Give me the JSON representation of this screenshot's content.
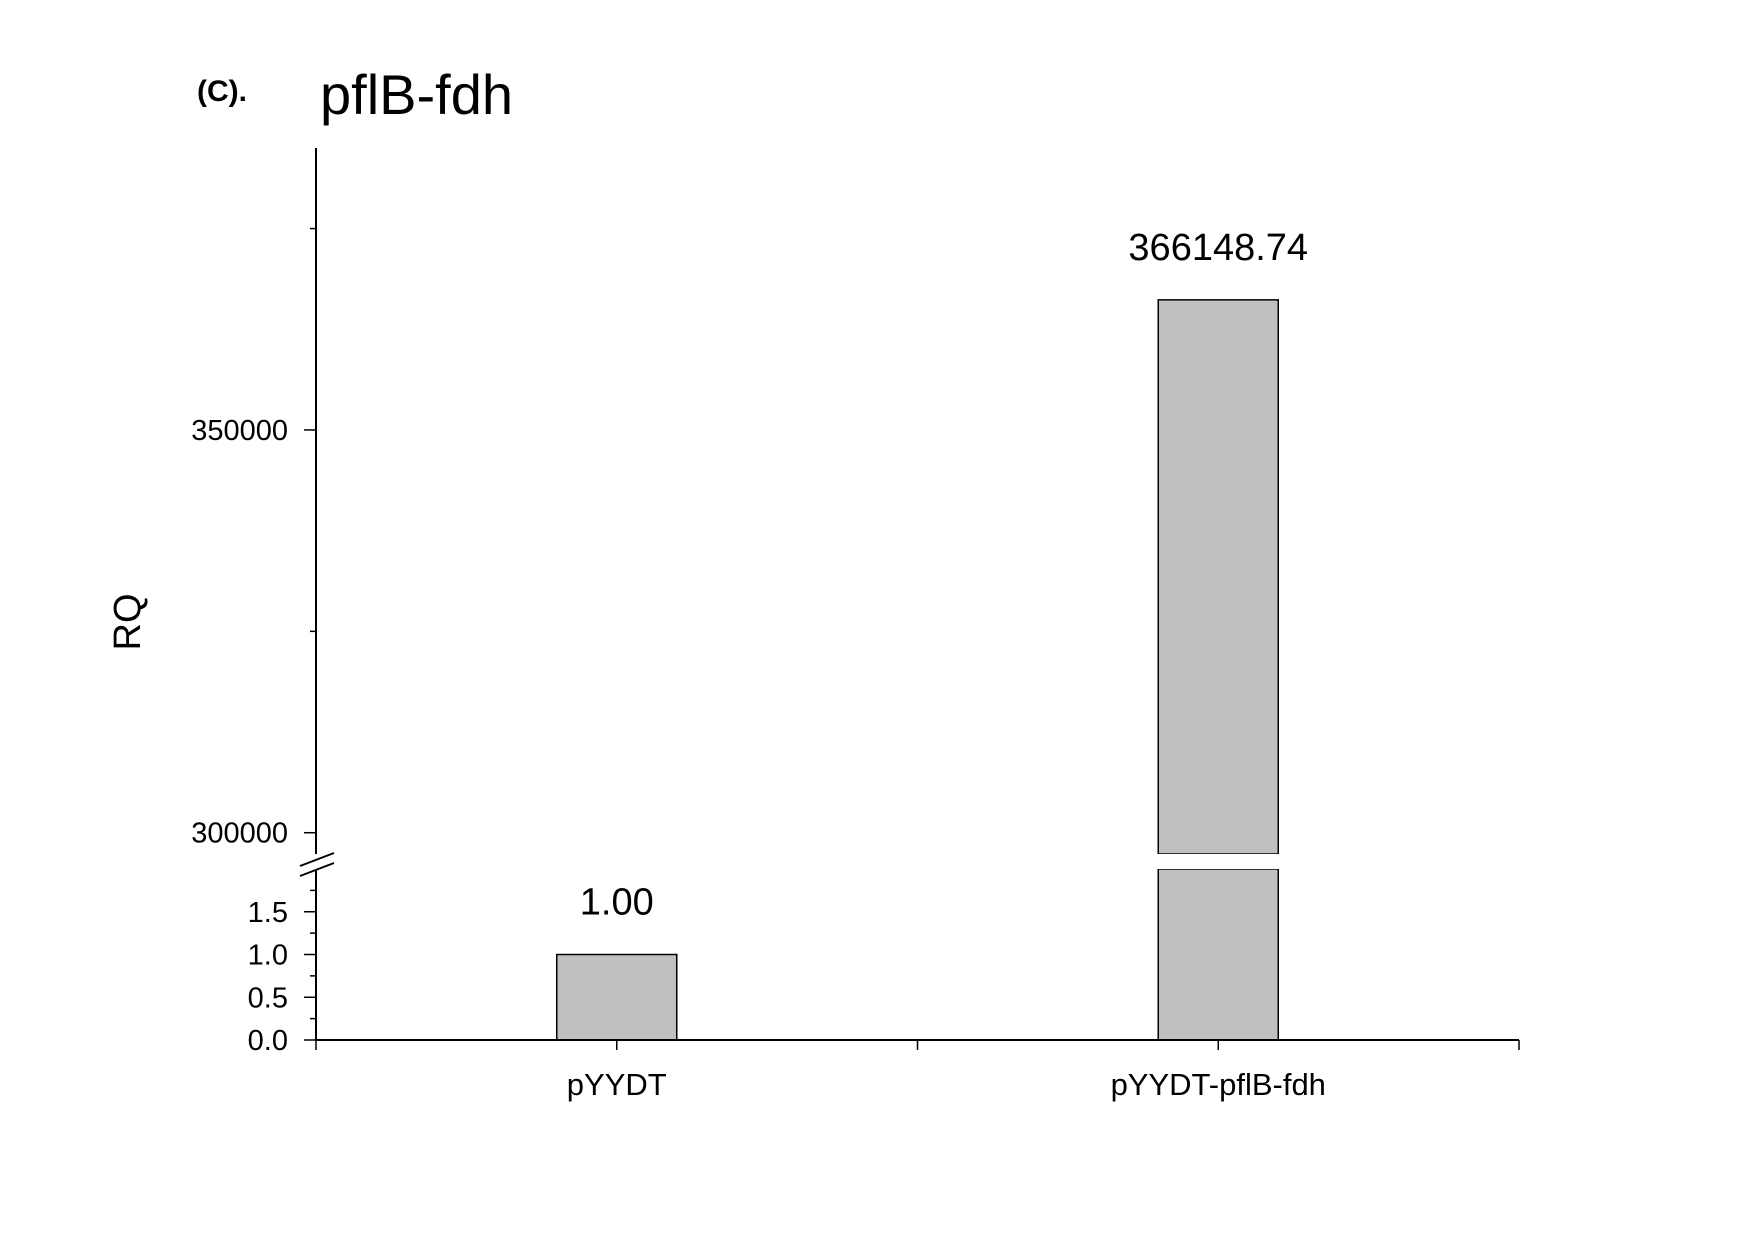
{
  "chart_data": {
    "type": "bar",
    "panel_label": "(C).",
    "title": "pflB-fdh",
    "xlabel": "",
    "ylabel": "RQ",
    "categories": [
      "pYYDT",
      "pYYDT-pflB-fdh"
    ],
    "values": [
      1.0,
      366148.74
    ],
    "data_labels": [
      "1.00",
      "366148.74"
    ],
    "bar_color": "#c0c0c0",
    "axis_break": true,
    "y_segments": [
      {
        "range": [
          0,
          2
        ],
        "ticks": [
          "0.0",
          "0.5",
          "1.0",
          "1.5"
        ],
        "tick_values": [
          0,
          0.5,
          1.0,
          1.5
        ],
        "minor_tick_values": [
          0.25,
          0.75,
          1.25,
          1.75
        ]
      },
      {
        "range": [
          295000,
          385000
        ],
        "ticks": [
          "300000",
          "350000"
        ],
        "tick_values": [
          300000,
          350000
        ],
        "minor_tick_values": [
          325000,
          375000
        ]
      }
    ],
    "grid": false,
    "legend": "none"
  }
}
